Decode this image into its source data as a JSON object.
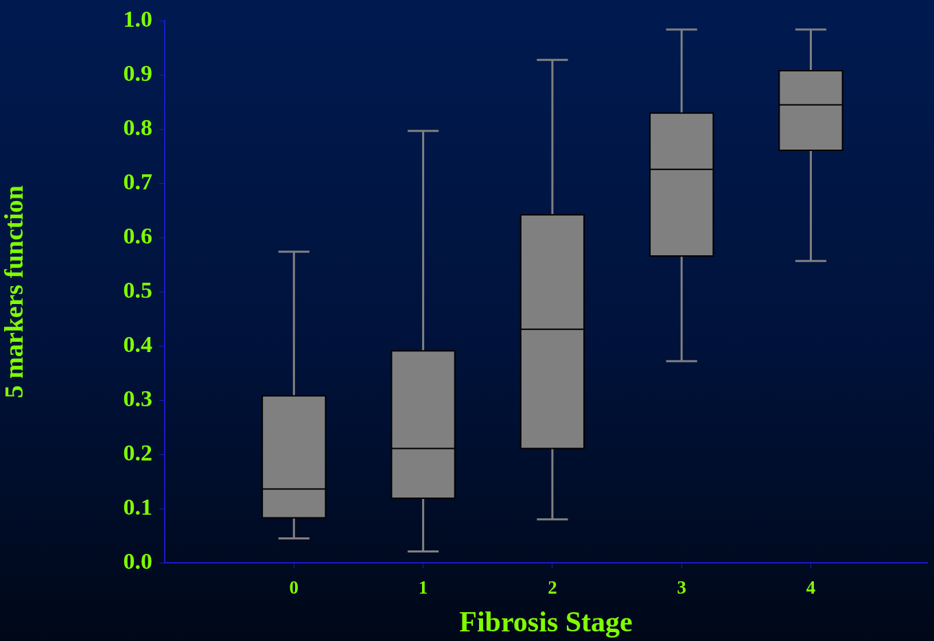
{
  "chart_data": {
    "type": "box",
    "xlabel": "Fibrosis Stage",
    "ylabel": "5 markers function",
    "categories": [
      "0",
      "1",
      "2",
      "3",
      "4"
    ],
    "ylim": [
      0,
      1
    ],
    "yticks": [
      {
        "value": 0,
        "label": "0.0"
      },
      0.1,
      0.2,
      0.3,
      0.4,
      0.5,
      0.6,
      0.7,
      0.8,
      0.9,
      {
        "value": 1,
        "label": "1.0"
      }
    ],
    "grid": false,
    "legend": false,
    "series": [
      {
        "color": "#808080",
        "boxes": [
          {
            "low": 0.045,
            "q1": 0.083,
            "median": 0.136,
            "q3": 0.308,
            "high": 0.574
          },
          {
            "low": 0.021,
            "q1": 0.119,
            "median": 0.211,
            "q3": 0.391,
            "high": 0.797
          },
          {
            "low": 0.08,
            "q1": 0.211,
            "median": 0.431,
            "q3": 0.642,
            "high": 0.928
          },
          {
            "low": 0.372,
            "q1": 0.566,
            "median": 0.726,
            "q3": 0.83,
            "high": 0.984
          },
          {
            "low": 0.557,
            "q1": 0.761,
            "median": 0.845,
            "q3": 0.908,
            "high": 0.984
          }
        ]
      }
    ]
  }
}
